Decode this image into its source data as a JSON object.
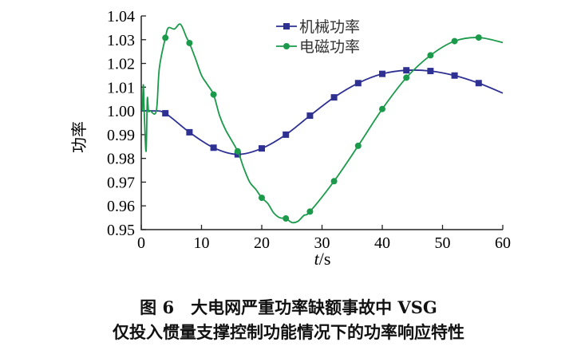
{
  "chart_data": {
    "type": "line",
    "xlabel_italic": "t",
    "xlabel_unit": "/s",
    "ylabel": "功率",
    "xlim": [
      0,
      60
    ],
    "ylim": [
      0.95,
      1.04
    ],
    "xticks": [
      "0",
      "10",
      "20",
      "30",
      "40",
      "50",
      "60"
    ],
    "yticks": [
      "0.95",
      "0.96",
      "0.97",
      "0.98",
      "0.99",
      "1.00",
      "1.01",
      "1.02",
      "1.03",
      "1.04"
    ],
    "grid": false,
    "legend": "top-center",
    "series": [
      {
        "name": "机械功率",
        "color": "#2e3192",
        "marker": "square",
        "x": [
          0,
          2,
          4,
          8,
          12,
          16,
          20,
          24,
          28,
          32,
          36,
          40,
          44,
          48,
          52,
          56,
          60
        ],
        "y": [
          1.0,
          1.0,
          0.999,
          0.991,
          0.9845,
          0.9817,
          0.9842,
          0.99,
          0.998,
          1.0057,
          1.0117,
          1.0156,
          1.0171,
          1.0168,
          1.0149,
          1.0117,
          1.0075
        ],
        "marker_x": [
          4,
          8,
          12,
          16,
          20,
          24,
          28,
          32,
          36,
          40,
          44,
          48,
          52,
          56
        ]
      },
      {
        "name": "电磁功率",
        "color": "#1a9a4a",
        "marker": "circle",
        "x": [
          0.2,
          0.35,
          0.5,
          0.8,
          1.0,
          1.2,
          1.5,
          2.5,
          3,
          4,
          4.5,
          5.5,
          6.5,
          7.5,
          8,
          9,
          10,
          11,
          12,
          13,
          14,
          16,
          17,
          18,
          19,
          20,
          21,
          22,
          23,
          24,
          25,
          26,
          27,
          28,
          32,
          36,
          40,
          44,
          48,
          52,
          56,
          60
        ],
        "y": [
          1.0,
          1.011,
          0.999,
          0.983,
          1.005,
          1.0,
          1.0,
          1.0,
          1.018,
          1.0308,
          1.035,
          1.0345,
          1.0365,
          1.031,
          1.0286,
          1.022,
          1.015,
          1.011,
          1.0069,
          0.998,
          0.992,
          0.983,
          0.976,
          0.97,
          0.967,
          0.9634,
          0.961,
          0.957,
          0.955,
          0.9547,
          0.953,
          0.9535,
          0.956,
          0.9576,
          0.9704,
          0.9853,
          1.0008,
          1.014,
          1.0234,
          1.0294,
          1.0309,
          1.0288
        ],
        "marker_x": [
          4,
          8,
          12,
          16,
          20,
          24,
          28,
          32,
          36,
          40,
          44,
          48,
          52,
          56
        ]
      }
    ]
  },
  "caption": {
    "line1": "图 6　大电网严重功率缺额事故中 VSG",
    "line2": "仅投入惯量支撑控制功能情况下的功率响应特性"
  }
}
